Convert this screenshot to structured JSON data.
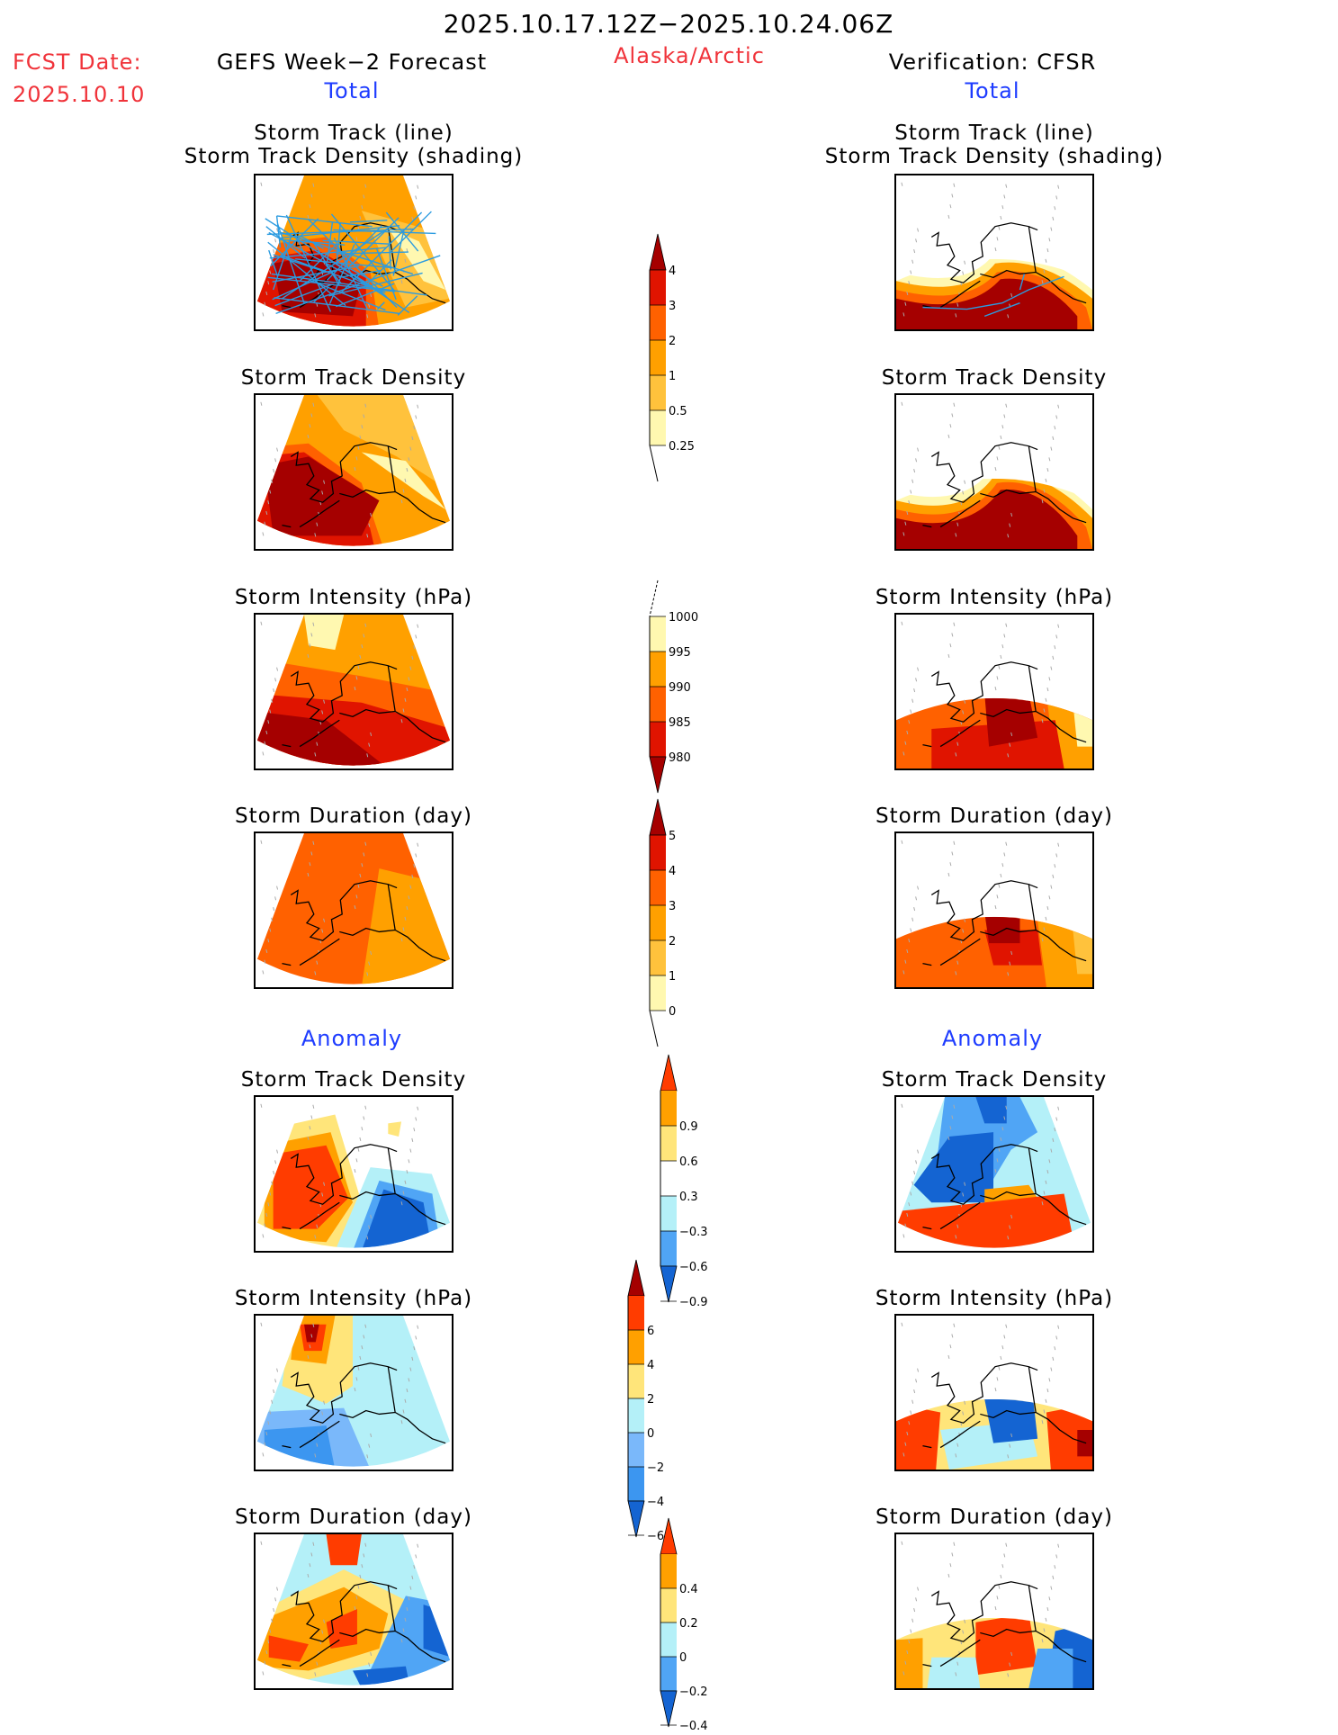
{
  "header": {
    "period": "2025.10.17.12Z−2025.10.24.06Z",
    "fcst_date_label": "FCST Date:",
    "fcst_date_value": "2025.10.10",
    "left_title": "GEFS Week−2 Forecast",
    "region": "Alaska/Arctic",
    "right_title": "Verification: CFSR",
    "total_label": "Total",
    "anomaly_label": "Anomaly"
  },
  "colors": {
    "text_red": "#f0333a",
    "text_blue": "#1e3cff"
  },
  "chart_data": [
    {
      "type": "heatmap",
      "id": "fcst-total-track",
      "column": "GEFS Week-2 Forecast",
      "section": "Total",
      "title": [
        "Storm Track (line)",
        "Storm Track Density (shading)"
      ],
      "overlay": "storm track lines",
      "colorbar": "density_total",
      "fill": "high density (3-4+) over Bering Sea / SW Alaska, 1-2 over interior, 0.25-0.5 over SE Yukon"
    },
    {
      "type": "heatmap",
      "id": "cfsr-total-track",
      "column": "Verification: CFSR",
      "section": "Total",
      "title": [
        "Storm Track (line)",
        "Storm Track Density (shading)"
      ],
      "overlay": "storm track lines",
      "colorbar": "density_total",
      "fill": "4+ over Gulf of Alaska / Aleutians, tapering northward, none over Arctic"
    },
    {
      "type": "heatmap",
      "id": "fcst-total-density",
      "column": "GEFS Week-2 Forecast",
      "section": "Total",
      "title": [
        "Storm Track Density"
      ],
      "colorbar": "density_total"
    },
    {
      "type": "heatmap",
      "id": "cfsr-total-density",
      "column": "Verification: CFSR",
      "section": "Total",
      "title": [
        "Storm Track Density"
      ],
      "colorbar": "density_total"
    },
    {
      "type": "heatmap",
      "id": "fcst-total-intensity",
      "column": "GEFS Week-2 Forecast",
      "section": "Total",
      "title": [
        "Storm Intensity (hPa)"
      ],
      "colorbar": "intensity_total"
    },
    {
      "type": "heatmap",
      "id": "cfsr-total-intensity",
      "column": "Verification: CFSR",
      "section": "Total",
      "title": [
        "Storm Intensity (hPa)"
      ],
      "colorbar": "intensity_total"
    },
    {
      "type": "heatmap",
      "id": "fcst-total-duration",
      "column": "GEFS Week-2 Forecast",
      "section": "Total",
      "title": [
        "Storm Duration (day)"
      ],
      "colorbar": "duration_total"
    },
    {
      "type": "heatmap",
      "id": "cfsr-total-duration",
      "column": "Verification: CFSR",
      "section": "Total",
      "title": [
        "Storm Duration (day)"
      ],
      "colorbar": "duration_total"
    },
    {
      "type": "heatmap",
      "id": "fcst-anom-density",
      "column": "GEFS Week-2 Forecast",
      "section": "Anomaly",
      "title": [
        "Storm Track Density"
      ],
      "colorbar": "density_anom"
    },
    {
      "type": "heatmap",
      "id": "cfsr-anom-density",
      "column": "Verification: CFSR",
      "section": "Anomaly",
      "title": [
        "Storm Track Density"
      ],
      "colorbar": "density_anom"
    },
    {
      "type": "heatmap",
      "id": "fcst-anom-intensity",
      "column": "GEFS Week-2 Forecast",
      "section": "Anomaly",
      "title": [
        "Storm Intensity (hPa)"
      ],
      "colorbar": "intensity_anom"
    },
    {
      "type": "heatmap",
      "id": "cfsr-anom-intensity",
      "column": "Verification: CFSR",
      "section": "Anomaly",
      "title": [
        "Storm Intensity (hPa)"
      ],
      "colorbar": "intensity_anom"
    },
    {
      "type": "heatmap",
      "id": "fcst-anom-duration",
      "column": "GEFS Week-2 Forecast",
      "section": "Anomaly",
      "title": [
        "Storm Duration (day)"
      ],
      "colorbar": "duration_anom"
    },
    {
      "type": "heatmap",
      "id": "cfsr-anom-duration",
      "column": "Verification: CFSR",
      "section": "Anomaly",
      "title": [
        "Storm Duration (day)"
      ],
      "colorbar": "duration_anom"
    }
  ],
  "colorbars": {
    "density_total": {
      "labels": [
        "4",
        "3",
        "2",
        "1",
        "0.5",
        "0.25"
      ],
      "colors": [
        "#a50000",
        "#e01400",
        "#ff6100",
        "#ffa000",
        "#ffc23c",
        "#fff8b0"
      ],
      "extend": "max"
    },
    "intensity_total": {
      "labels": [
        "1000",
        "995",
        "990",
        "985",
        "980"
      ],
      "colors": [
        "#fff8b0",
        "#ffa000",
        "#ff6100",
        "#e01400",
        "#a50000"
      ],
      "extend": "min"
    },
    "duration_total": {
      "labels": [
        "5",
        "4",
        "3",
        "2",
        "1",
        "0"
      ],
      "colors": [
        "#a50000",
        "#e01400",
        "#ff6100",
        "#ffa000",
        "#ffc23c",
        "#fff8b0"
      ],
      "extend": "max"
    },
    "density_anom": {
      "labels": [
        "0.9",
        "0.6",
        "0.3",
        "−0.3",
        "−0.6",
        "−0.9"
      ],
      "colors": [
        "#ff3c00",
        "#ffa000",
        "#ffe57a",
        "#ffffff",
        "#b4f0f8",
        "#50a5f5",
        "#1464d2"
      ],
      "extend": "both"
    },
    "intensity_anom": {
      "labels": [
        "6",
        "4",
        "2",
        "0",
        "−2",
        "−4",
        "−6"
      ],
      "colors": [
        "#a50000",
        "#ff3c00",
        "#ffa000",
        "#ffe57a",
        "#b4f0f8",
        "#7ab8fa",
        "#3c96f0",
        "#1464d2"
      ],
      "extend": "both"
    },
    "duration_anom": {
      "labels": [
        "0.4",
        "0.2",
        "0",
        "−0.2",
        "−0.4"
      ],
      "colors": [
        "#ff3c00",
        "#ffa000",
        "#ffe57a",
        "#b4f0f8",
        "#50a5f5",
        "#1464d2"
      ],
      "extend": "both"
    }
  }
}
